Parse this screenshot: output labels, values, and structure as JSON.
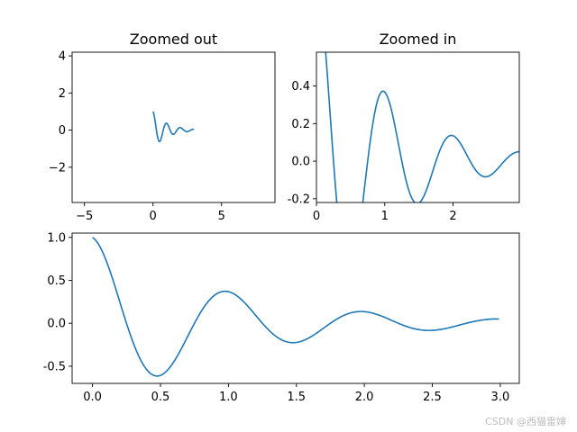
{
  "figure": {
    "watermark": "CSDN @西猫雷婶"
  },
  "chart_data": [
    {
      "type": "line",
      "title": "Zoomed out",
      "xlabel": "",
      "ylabel": "",
      "xlim": [
        -5.9,
        8.9
      ],
      "ylim": [
        -3.9,
        4.2
      ],
      "xticks": [
        -5,
        0,
        5
      ],
      "yticks": [
        -2,
        0,
        2,
        4
      ],
      "grid": false,
      "series": [
        {
          "function": "exp(-x)*cos(2*pi*x)",
          "x_range": [
            0,
            3
          ],
          "step": 0.01,
          "color": "#1f77b4"
        }
      ]
    },
    {
      "type": "line",
      "title": "Zoomed in",
      "xlabel": "",
      "ylabel": "",
      "xlim": [
        0,
        2.97
      ],
      "ylim": [
        -0.22,
        0.58
      ],
      "xticks": [
        0,
        1,
        2
      ],
      "yticks": [
        -0.2,
        0.0,
        0.2,
        0.4
      ],
      "grid": false,
      "series": [
        {
          "function": "exp(-x)*cos(2*pi*x)",
          "x_range": [
            0,
            3
          ],
          "step": 0.01,
          "color": "#1f77b4"
        }
      ]
    },
    {
      "type": "line",
      "title": "",
      "xlabel": "",
      "ylabel": "",
      "xlim": [
        -0.15,
        3.14
      ],
      "ylim": [
        -0.7,
        1.05
      ],
      "xticks": [
        0.0,
        0.5,
        1.0,
        1.5,
        2.0,
        2.5,
        3.0
      ],
      "yticks": [
        -0.5,
        0.0,
        0.5,
        1.0
      ],
      "grid": false,
      "series": [
        {
          "function": "exp(-x)*cos(2*pi*x)",
          "x_range": [
            0,
            3
          ],
          "step": 0.01,
          "color": "#1f77b4"
        }
      ]
    }
  ]
}
